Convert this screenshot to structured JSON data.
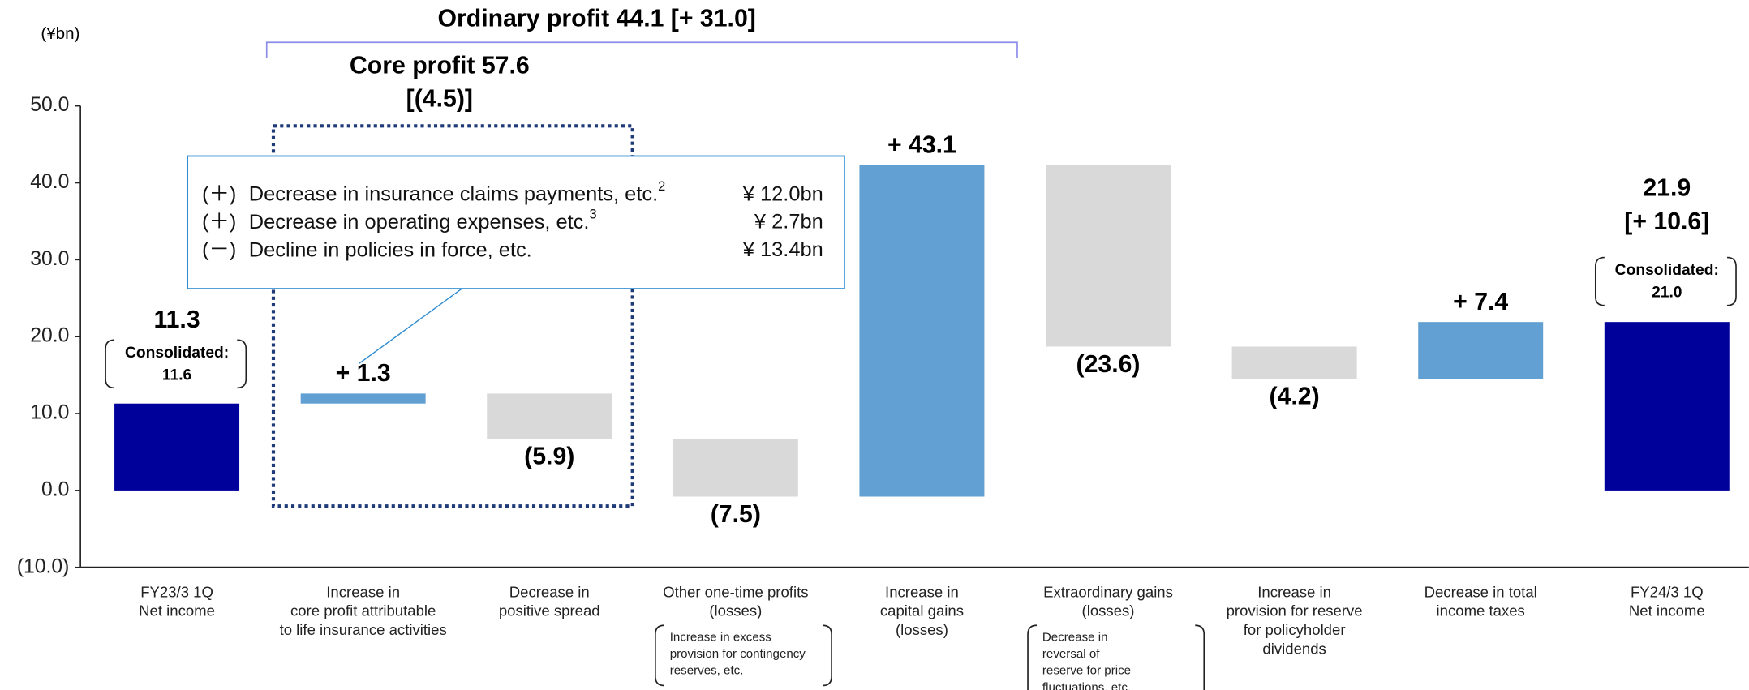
{
  "chart_data": {
    "type": "waterfall",
    "title": "Ordinary profit  44.1 [+ 31.0]",
    "unit_label": "(¥bn)",
    "categories": [
      [
        "FY23/3 1Q",
        "Net income"
      ],
      [
        "Increase in",
        "core profit attributable",
        "to life insurance activities"
      ],
      [
        "Decrease in",
        "positive spread"
      ],
      [
        "Other one-time profits",
        "(losses)"
      ],
      [
        "Increase in",
        "capital gains",
        "(losses)"
      ],
      [
        "Extraordinary gains",
        "(losses)"
      ],
      [
        "Increase in",
        "provision for reserve",
        "for policyholder",
        "dividends"
      ],
      [
        "Decrease in total",
        "income taxes"
      ],
      [
        "FY24/3 1Q",
        "Net income"
      ]
    ],
    "values": [
      11.3,
      1.3,
      -5.9,
      -7.5,
      43.1,
      -23.6,
      -4.2,
      7.4,
      21.9
    ],
    "value_labels": [
      "11.3",
      "+ 1.3",
      "(5.9)",
      "(7.5)",
      "+ 43.1",
      "(23.6)",
      "(4.2)",
      "+ 7.4",
      "21.9"
    ],
    "measure": [
      "absolute",
      "relative",
      "relative",
      "relative",
      "relative",
      "relative",
      "relative",
      "relative",
      "absolute"
    ],
    "colors": [
      "#00009b",
      "#629fd3",
      "#d9d9d9",
      "#d9d9d9",
      "#629fd3",
      "#d9d9d9",
      "#d9d9d9",
      "#629fd3",
      "#00009b"
    ],
    "ylim": [
      -10,
      50
    ],
    "yticks": [
      {
        "value": 50,
        "label": "50.0"
      },
      {
        "value": 40,
        "label": "40.0"
      },
      {
        "value": 30,
        "label": "30.0"
      },
      {
        "value": 20,
        "label": "20.0"
      },
      {
        "value": 10,
        "label": "10.0"
      },
      {
        "value": 0,
        "label": "0.0"
      },
      {
        "value": -10,
        "label": "(10.0)"
      }
    ],
    "category_notes": {
      "3": [
        "Increase in excess",
        "provision for contingency",
        "reserves, etc."
      ],
      "5": [
        "Decrease in",
        "reversal of",
        "reserve for price",
        "fluctuations, etc."
      ]
    },
    "change_labels": {
      "8": "[+ 10.6]"
    },
    "consolidated": {
      "0": [
        "Consolidated:",
        "11.6"
      ],
      "8": [
        "Consolidated:",
        "21.0"
      ]
    },
    "core_profit": [
      "Core profit 57.6",
      "[(4.5)]"
    ],
    "callout": [
      {
        "sign": "(＋)",
        "text": "Decrease in insurance claims payments, etc.",
        "note": "2",
        "amount": "¥ 12.0bn"
      },
      {
        "sign": "(＋)",
        "text": "Decrease in operating expenses, etc.",
        "note": "3",
        "amount": "¥ 2.7bn"
      },
      {
        "sign": "(－)",
        "text": "Decline in policies in force, etc.",
        "amount": "¥ 13.4bn"
      }
    ]
  }
}
